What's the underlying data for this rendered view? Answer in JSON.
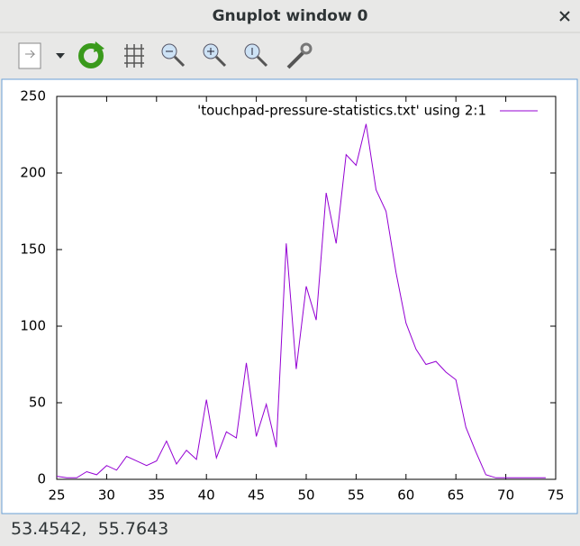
{
  "window": {
    "title": "Gnuplot window 0",
    "status": "53.4542,  55.7643"
  },
  "chart_data": {
    "type": "line",
    "x": [
      25,
      26,
      27,
      28,
      29,
      30,
      31,
      32,
      33,
      34,
      35,
      36,
      37,
      38,
      39,
      40,
      41,
      42,
      43,
      44,
      45,
      46,
      47,
      48,
      49,
      50,
      51,
      52,
      53,
      54,
      55,
      56,
      57,
      58,
      59,
      60,
      61,
      62,
      63,
      64,
      65,
      66,
      67,
      68,
      69,
      70,
      71,
      72,
      73,
      74
    ],
    "series": [
      {
        "name": "'touchpad-pressure-statistics.txt' using 2:1",
        "color": "#9400d3",
        "values": [
          2,
          1,
          1,
          5,
          3,
          9,
          6,
          15,
          12,
          9,
          12,
          25,
          10,
          19,
          13,
          52,
          14,
          31,
          27,
          76,
          28,
          49,
          21,
          154,
          72,
          126,
          104,
          187,
          154,
          212,
          205,
          232,
          189,
          175,
          135,
          102,
          85,
          75,
          77,
          70,
          65,
          34,
          18,
          3,
          1,
          1,
          1,
          1,
          1,
          1
        ]
      }
    ],
    "xlim": [
      25,
      75
    ],
    "ylim": [
      0,
      250
    ],
    "xticks": [
      25,
      30,
      35,
      40,
      45,
      50,
      55,
      60,
      65,
      70,
      75
    ],
    "yticks": [
      0,
      50,
      100,
      150,
      200,
      250
    ],
    "legend": "top-right"
  }
}
